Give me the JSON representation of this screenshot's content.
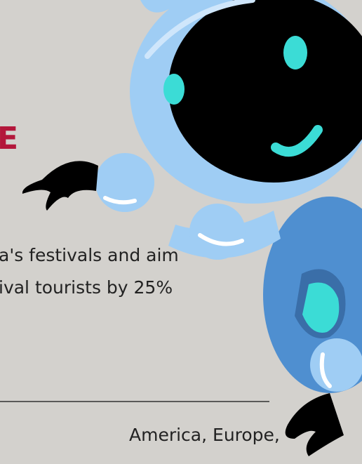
{
  "heading_fragment": "E",
  "body_lines": [
    "a's festivals and aim",
    "ival tourists by 25%"
  ],
  "footer_line": "America, Europe,"
}
